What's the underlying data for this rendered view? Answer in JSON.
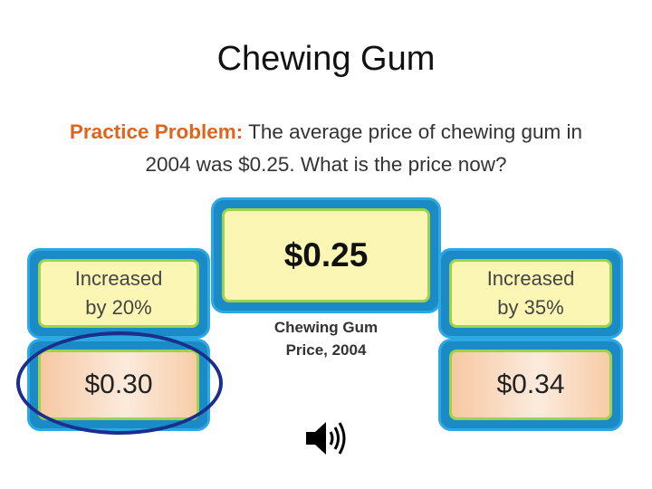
{
  "title": "Chewing Gum",
  "problem": {
    "label": "Practice Problem:",
    "line1": " The average price of chewing gum in",
    "line2": "2004 was $0.25. What is the price now?"
  },
  "center": {
    "value": "$0.25",
    "caption_line1": "Chewing Gum",
    "caption_line2": "Price, 2004"
  },
  "left": {
    "label_line1": "Increased",
    "label_line2": "by 20%",
    "value": "$0.30"
  },
  "right": {
    "label_line1": "Increased",
    "label_line2": "by 35%",
    "value": "$0.34"
  },
  "colors": {
    "accent": "#E0641E",
    "tile_blue": "#1B8BC8",
    "tile_border": "#2EA8E2",
    "inner_border": "#9ED24A",
    "cream": "#FCF6B5",
    "peach": "#F6C8A3",
    "circle": "#1A2E8C"
  },
  "icons": {
    "audio": "speaker-icon"
  }
}
